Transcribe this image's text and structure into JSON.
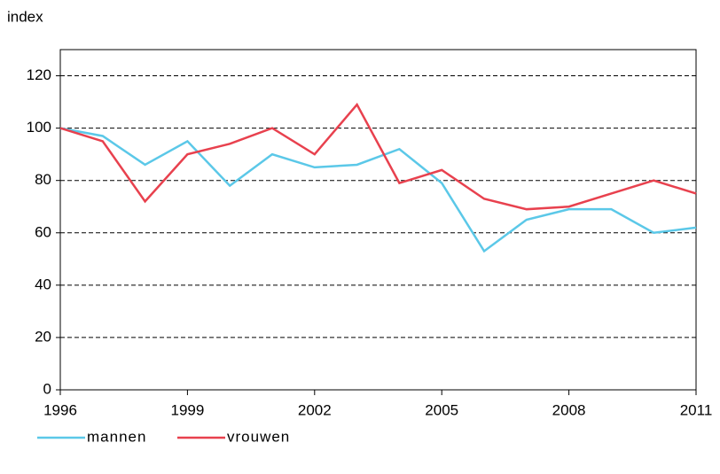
{
  "chart_data": {
    "type": "line",
    "y_label": "index",
    "x": [
      1996,
      1997,
      1998,
      1999,
      2000,
      2001,
      2002,
      2003,
      2004,
      2005,
      2006,
      2007,
      2008,
      2009,
      2010,
      2011
    ],
    "series": [
      {
        "name": "mannen",
        "color": "#5bc8e8",
        "values": [
          100,
          97,
          86,
          95,
          78,
          90,
          85,
          86,
          92,
          79,
          53,
          65,
          69,
          69,
          60,
          62
        ]
      },
      {
        "name": "vrouwen",
        "color": "#e8414e",
        "values": [
          100,
          95,
          72,
          90,
          94,
          100,
          90,
          109,
          79,
          84,
          73,
          69,
          70,
          75,
          80,
          75
        ]
      }
    ],
    "xlim": [
      1996,
      2011
    ],
    "xticks": [
      1996,
      1999,
      2002,
      2005,
      2008,
      2011
    ],
    "ylim": [
      0,
      130
    ],
    "yticks": [
      0,
      20,
      40,
      60,
      80,
      100,
      120
    ],
    "grid": true,
    "legend": "bottom"
  }
}
